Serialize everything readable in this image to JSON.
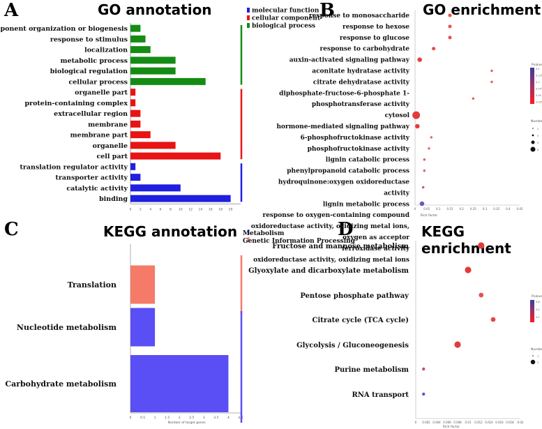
{
  "panels": {
    "A": {
      "letter": "A",
      "title": "GO annotation"
    },
    "B": {
      "letter": "B",
      "title": "GO enrichment"
    },
    "C": {
      "letter": "C",
      "title": "KEGG annotation"
    },
    "D": {
      "letter": "D",
      "title": "KEGG enrichment"
    }
  },
  "chart_data": [
    {
      "id": "A",
      "type": "bar",
      "orientation": "horizontal",
      "title": "GO annotation",
      "categories": [
        "cellular component organization or biogenesis",
        "response to stimulus",
        "localization",
        "metabolic process",
        "biological regulation",
        "cellular process",
        "organelle part",
        "protein-containing complex",
        "extracellular region",
        "membrane",
        "membrane part",
        "organelle",
        "cell part",
        "translation regulator activity",
        "transporter activity",
        "catalytic activity",
        "binding"
      ],
      "values": [
        2,
        3,
        4,
        9,
        9,
        15,
        1,
        1,
        2,
        2,
        4,
        9,
        18,
        1,
        2,
        10,
        20
      ],
      "groups": [
        "biological process",
        "biological process",
        "biological process",
        "biological process",
        "biological process",
        "biological process",
        "cellular component",
        "cellular component",
        "cellular component",
        "cellular component",
        "cellular component",
        "cellular component",
        "cellular component",
        "molecular function",
        "molecular function",
        "molecular function",
        "molecular function"
      ],
      "xlim": [
        0,
        22
      ],
      "ticks": [
        "0",
        "2",
        "4",
        "6",
        "8",
        "10",
        "12",
        "14",
        "16",
        "18",
        "20"
      ],
      "legend": [
        {
          "name": "molecular function",
          "color": "#1f1fe0"
        },
        {
          "name": "cellular component",
          "color": "#e81414"
        },
        {
          "name": "biological process",
          "color": "#148c14"
        }
      ]
    },
    {
      "id": "B",
      "type": "scatter",
      "title": "GO enrichment",
      "categories": [
        "response to monosaccharide",
        "response to hexose",
        "response to glucose",
        "response to carbohydrate",
        "auxin-activated signaling pathway",
        "aconitate hydratase activity",
        "citrate dehydratase activity",
        "diphosphate-fructose-6-phosphate 1-phosphotransferase activity",
        "cytosol",
        "hormone-mediated signaling pathway",
        "6-phosphofructokinase activity",
        "phosphofructokinase activity",
        "lignin catabolic process",
        "phenylpropanoid catabolic process",
        "hydroquinone:oxygen oxidoreductase activity",
        "lignin metabolic process",
        "response to oxygen-containing compound",
        "oxidoreductase activity, oxidizing metal ions, oxygen as acceptor",
        "ferroxidase activity",
        "oxidoreductase activity, oxidizing metal ions"
      ],
      "x": [
        0.15,
        0.15,
        0.15,
        0.08,
        0.02,
        0.33,
        0.33,
        0.25,
        0.005,
        0.01,
        0.07,
        0.06,
        0.04,
        0.04,
        0.035,
        0.03,
        0.03,
        0.03,
        0.03,
        0.025
      ],
      "size": [
        2,
        2,
        2,
        2,
        3,
        1,
        1,
        1,
        6,
        3,
        1,
        1,
        1,
        1,
        1,
        1,
        3,
        1,
        1,
        1
      ],
      "color": [
        "#e8504d",
        "#e8504d",
        "#e8504d",
        "#e84a4a",
        "#e34040",
        "#e86060",
        "#e86060",
        "#e86060",
        "#e33b3b",
        "#e33b3b",
        "#e86a6a",
        "#e86a6a",
        "#d65f78",
        "#d65f78",
        "#c25a8a",
        "#8a5aaa",
        "#5a5ac8",
        "#6a5ab8",
        "#6a5ab8",
        "#6a5ab8"
      ],
      "xlabel": "Rich factor",
      "ticks": [
        "0",
        "0.05",
        "0.1",
        "0.15",
        "0.2",
        "0.25",
        "0.3",
        "0.35",
        "0.4",
        "0.45"
      ],
      "xlim": [
        0,
        0.45
      ],
      "legend_title": "Pvalue",
      "pvalue_ticks": [
        "0.1",
        "0.125",
        "0.1",
        "0.075",
        "0.05",
        "0.025"
      ],
      "size_title": "Number",
      "size_ticks": [
        "2",
        "3",
        "5",
        "6"
      ]
    },
    {
      "id": "C",
      "type": "bar",
      "orientation": "vertical",
      "title": "KEGG annotation",
      "categories": [
        "Translation",
        "Nucleotide metabolism",
        "Carbohydrate metabolism"
      ],
      "values": [
        1,
        1,
        4
      ],
      "groups": [
        "Genetic Information Processing",
        "Metabolism",
        "Metabolism"
      ],
      "xlim": [
        0,
        4.5
      ],
      "ticks": [
        "0",
        "0.5",
        "1",
        "1.5",
        "2",
        "2.5",
        "3",
        "3.5",
        "4",
        "4.5"
      ],
      "xlabel": "Number of target genes",
      "legend": [
        {
          "name": "Metabolism",
          "color": "#5a4ef5"
        },
        {
          "name": "Genetic Information Processing",
          "color": "#f57a68"
        }
      ]
    },
    {
      "id": "D",
      "type": "scatter",
      "title": "KEGG enrichment",
      "categories": [
        "Fructose and mannose metabolism",
        "Glyoxylate and dicarboxylate metabolism",
        "Pentose phosphate pathway",
        "Citrate cycle (TCA cycle)",
        "Glycolysis / Gluconeogenesis",
        "Purine metabolism",
        "RNA transport"
      ],
      "x": [
        0.0125,
        0.01,
        0.0125,
        0.0148,
        0.008,
        0.0015,
        0.0015
      ],
      "size": [
        3,
        3,
        2,
        2,
        3,
        1,
        1
      ],
      "color": [
        "#e33b3b",
        "#e33b3b",
        "#e85050",
        "#e84545",
        "#e33b3b",
        "#c0506a",
        "#5a5ac8"
      ],
      "xlabel": "Rich factor",
      "ticks": [
        "0",
        "0.002",
        "0.004",
        "0.006",
        "0.008",
        "0.01",
        "0.012",
        "0.014",
        "0.016",
        "0.018",
        "0.02"
      ],
      "xlim": [
        0,
        0.02
      ],
      "legend_title": "Pvalue",
      "pvalue_ticks": [
        "0.6",
        "0.4",
        "0.2"
      ],
      "size_title": "Number",
      "size_ticks": [
        "1",
        "2"
      ]
    }
  ]
}
